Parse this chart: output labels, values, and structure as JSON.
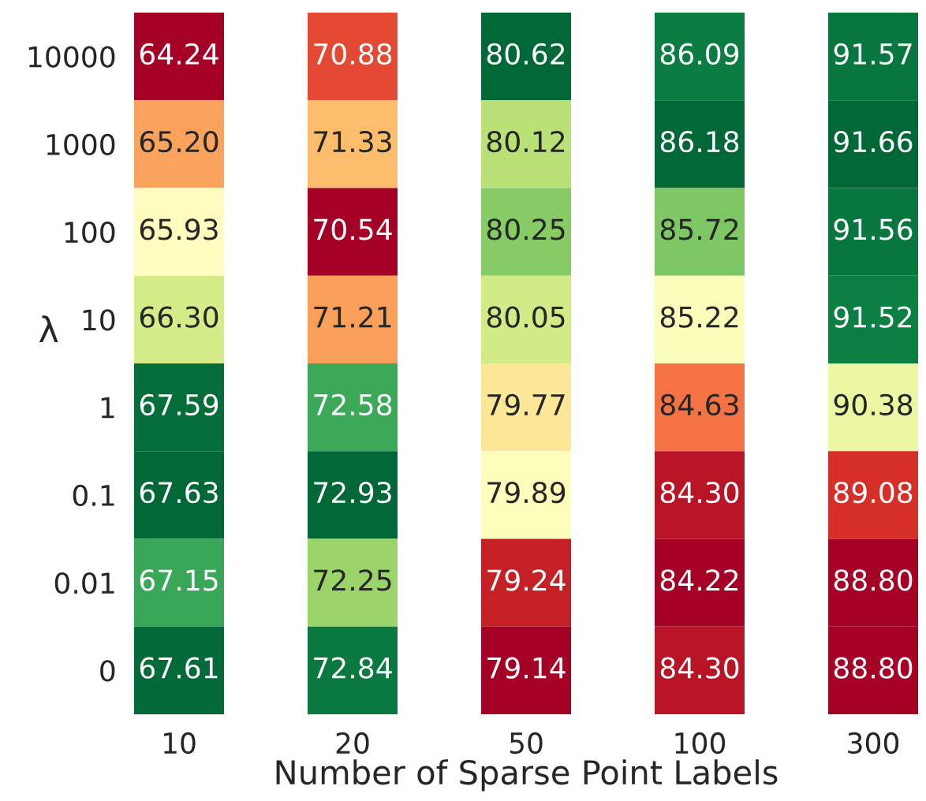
{
  "chart_data": [
    {
      "type": "heatmap",
      "ylabel": "λ",
      "categories": [
        "10"
      ],
      "y_categories": [
        "10000",
        "1000",
        "100",
        "10",
        "1",
        "0.1",
        "0.01",
        "0"
      ],
      "cells": [
        [
          64.24
        ],
        [
          65.2
        ],
        [
          65.93
        ],
        [
          66.3
        ],
        [
          67.59
        ],
        [
          67.63
        ],
        [
          67.15
        ],
        [
          67.61
        ]
      ],
      "cell_labels": [
        [
          "64.24"
        ],
        [
          "65.20"
        ],
        [
          "65.93"
        ],
        [
          "66.30"
        ],
        [
          "67.59"
        ],
        [
          "67.63"
        ],
        [
          "67.15"
        ],
        [
          "67.61"
        ]
      ]
    },
    {
      "type": "heatmap",
      "tick_labels": "x",
      "categories": [
        "20"
      ],
      "y_categories": [
        "10000",
        "1000",
        "100",
        "10",
        "1",
        "0.1",
        "0.01",
        "0"
      ],
      "cells": [
        [
          70.88
        ],
        [
          71.33
        ],
        [
          70.54
        ],
        [
          71.21
        ],
        [
          72.58
        ],
        [
          72.93
        ],
        [
          72.25
        ],
        [
          72.84
        ]
      ],
      "cell_labels": [
        [
          "70.88"
        ],
        [
          "71.33"
        ],
        [
          "70.54"
        ],
        [
          "71.21"
        ],
        [
          "72.58"
        ],
        [
          "72.93"
        ],
        [
          "72.25"
        ],
        [
          "72.84"
        ]
      ]
    },
    {
      "type": "heatmap",
      "tick_labels": "x",
      "xlabel": "Number of Sparse Point Labels",
      "categories": [
        "50"
      ],
      "y_categories": [
        "10000",
        "1000",
        "100",
        "10",
        "1",
        "0.1",
        "0.01",
        "0"
      ],
      "cells": [
        [
          80.62
        ],
        [
          80.12
        ],
        [
          80.25
        ],
        [
          80.05
        ],
        [
          79.77
        ],
        [
          79.89
        ],
        [
          79.24
        ],
        [
          79.14
        ]
      ],
      "cell_labels": [
        [
          "80.62"
        ],
        [
          "80.12"
        ],
        [
          "80.25"
        ],
        [
          "80.05"
        ],
        [
          "79.77"
        ],
        [
          "79.89"
        ],
        [
          "79.24"
        ],
        [
          "79.14"
        ]
      ]
    },
    {
      "type": "heatmap",
      "tick_labels": "x",
      "categories": [
        "100"
      ],
      "y_categories": [
        "10000",
        "1000",
        "100",
        "10",
        "1",
        "0.1",
        "0.01",
        "0"
      ],
      "cells": [
        [
          86.09
        ],
        [
          86.18
        ],
        [
          85.72
        ],
        [
          85.22
        ],
        [
          84.63
        ],
        [
          84.3
        ],
        [
          84.22
        ],
        [
          84.3
        ]
      ],
      "cell_labels": [
        [
          "86.09"
        ],
        [
          "86.18"
        ],
        [
          "85.72"
        ],
        [
          "85.22"
        ],
        [
          "84.63"
        ],
        [
          "84.30"
        ],
        [
          "84.22"
        ],
        [
          "84.30"
        ]
      ]
    },
    {
      "type": "heatmap",
      "tick_labels": "x",
      "categories": [
        "300"
      ],
      "y_categories": [
        "10000",
        "1000",
        "100",
        "10",
        "1",
        "0.1",
        "0.01",
        "0"
      ],
      "cells": [
        [
          91.57
        ],
        [
          91.66
        ],
        [
          91.56
        ],
        [
          91.52
        ],
        [
          90.38
        ],
        [
          89.08
        ],
        [
          88.8
        ],
        [
          88.8
        ]
      ],
      "cell_labels": [
        [
          "91.57"
        ],
        [
          "91.66"
        ],
        [
          "91.56"
        ],
        [
          "91.52"
        ],
        [
          "90.38"
        ],
        [
          "89.08"
        ],
        [
          "88.80"
        ],
        [
          "88.80"
        ]
      ]
    }
  ]
}
